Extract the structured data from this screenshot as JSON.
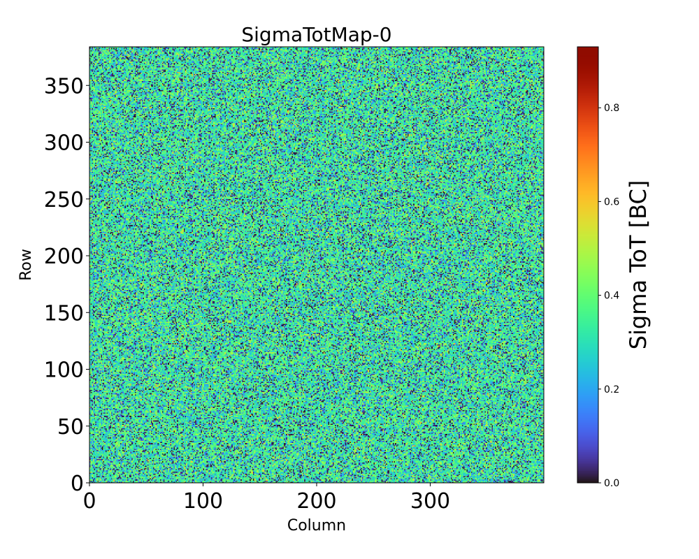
{
  "chart_data": {
    "type": "heatmap",
    "title": "SigmaTotMap-0",
    "xlabel": "Column",
    "ylabel": "Row",
    "colorbar_label": "Sigma ToT [BC]",
    "colormap": "turbo",
    "n_columns": 400,
    "n_rows": 384,
    "xlim": [
      0,
      400
    ],
    "ylim": [
      0,
      384
    ],
    "clim": [
      0.0,
      0.93
    ],
    "x_ticks": [
      0,
      100,
      200,
      300
    ],
    "y_ticks": [
      0,
      50,
      100,
      150,
      200,
      250,
      300,
      350
    ],
    "colorbar_ticks": [
      "0.0",
      "0.2",
      "0.4",
      "0.6",
      "0.8"
    ],
    "colorbar_tick_values": [
      0.0,
      0.2,
      0.4,
      0.6,
      0.8
    ],
    "value_distribution": {
      "typical_mean": 0.33,
      "typical_std": 0.1,
      "fraction_near_zero": 0.15
    },
    "grid": false
  }
}
